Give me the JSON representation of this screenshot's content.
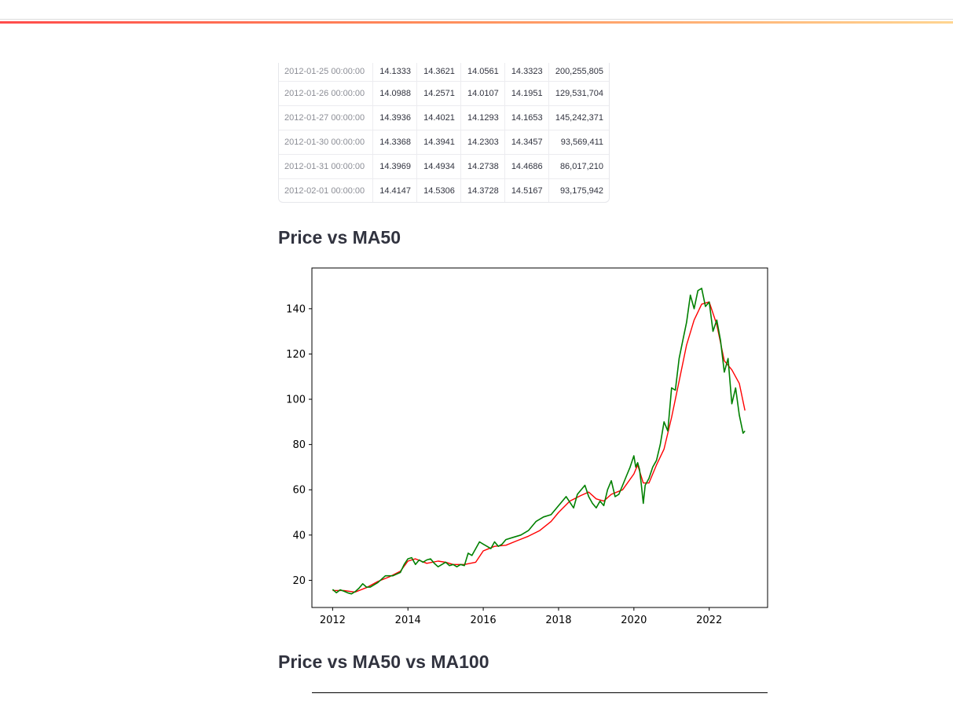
{
  "table": {
    "rows": [
      {
        "date": "2012-01-25 00:00:00",
        "open": "14.1333",
        "high": "14.3621",
        "low": "14.0561",
        "close": "14.3323",
        "volume": "200,255,805"
      },
      {
        "date": "2012-01-26 00:00:00",
        "open": "14.0988",
        "high": "14.2571",
        "low": "14.0107",
        "close": "14.1951",
        "volume": "129,531,704"
      },
      {
        "date": "2012-01-27 00:00:00",
        "open": "14.3936",
        "high": "14.4021",
        "low": "14.1293",
        "close": "14.1653",
        "volume": "145,242,371"
      },
      {
        "date": "2012-01-30 00:00:00",
        "open": "14.3368",
        "high": "14.3941",
        "low": "14.2303",
        "close": "14.3457",
        "volume": "93,569,411"
      },
      {
        "date": "2012-01-31 00:00:00",
        "open": "14.3969",
        "high": "14.4934",
        "low": "14.2738",
        "close": "14.4686",
        "volume": "86,017,210"
      },
      {
        "date": "2012-02-01 00:00:00",
        "open": "14.4147",
        "high": "14.5306",
        "low": "14.3728",
        "close": "14.5167",
        "volume": "93,175,942"
      }
    ]
  },
  "sections": {
    "ma50_title": "Price vs MA50",
    "ma100_title": "Price vs MA50 vs MA100"
  },
  "chart_data": {
    "type": "line",
    "title": "",
    "xlabel": "",
    "ylabel": "",
    "xlim": [
      2011.45,
      2023.55
    ],
    "ylim": [
      8,
      158
    ],
    "x_ticks": [
      2012,
      2014,
      2016,
      2018,
      2020,
      2022
    ],
    "y_ticks": [
      20,
      40,
      60,
      80,
      100,
      120,
      140
    ],
    "grid": false,
    "series": [
      {
        "color": "#ff0000",
        "x": [
          2012.0,
          2012.3,
          2012.6,
          2012.9,
          2013.2,
          2013.5,
          2013.8,
          2014.0,
          2014.2,
          2014.5,
          2014.8,
          2015.0,
          2015.2,
          2015.5,
          2015.8,
          2016.0,
          2016.3,
          2016.6,
          2016.9,
          2017.2,
          2017.5,
          2017.8,
          2018.0,
          2018.3,
          2018.6,
          2018.8,
          2019.0,
          2019.2,
          2019.4,
          2019.7,
          2020.0,
          2020.1,
          2020.25,
          2020.4,
          2020.6,
          2020.8,
          2021.0,
          2021.2,
          2021.4,
          2021.6,
          2021.8,
          2022.0,
          2022.2,
          2022.4,
          2022.6,
          2022.8,
          2022.95
        ],
        "y": [
          15.5,
          15.5,
          14.8,
          16.8,
          19.5,
          21.5,
          24,
          28.5,
          29.5,
          27.5,
          28.5,
          28,
          27,
          27,
          28,
          33,
          35,
          35.5,
          37.5,
          39.5,
          42,
          46,
          50,
          55,
          57.5,
          59,
          56,
          55,
          58,
          60,
          67,
          71,
          63,
          63,
          71,
          78,
          92,
          108,
          124,
          135,
          142,
          143,
          133,
          117,
          113,
          107,
          95
        ]
      },
      {
        "color": "#008000",
        "x": [
          2012.0,
          2012.1,
          2012.2,
          2012.3,
          2012.4,
          2012.5,
          2012.6,
          2012.7,
          2012.8,
          2012.9,
          2013.0,
          2013.2,
          2013.4,
          2013.6,
          2013.8,
          2013.9,
          2014.0,
          2014.1,
          2014.2,
          2014.3,
          2014.4,
          2014.5,
          2014.6,
          2014.7,
          2014.8,
          2014.9,
          2015.0,
          2015.1,
          2015.2,
          2015.3,
          2015.4,
          2015.5,
          2015.6,
          2015.7,
          2015.8,
          2015.9,
          2016.0,
          2016.1,
          2016.2,
          2016.3,
          2016.4,
          2016.5,
          2016.6,
          2016.8,
          2017.0,
          2017.2,
          2017.4,
          2017.6,
          2017.8,
          2018.0,
          2018.2,
          2018.4,
          2018.5,
          2018.6,
          2018.7,
          2018.8,
          2018.9,
          2019.0,
          2019.1,
          2019.2,
          2019.3,
          2019.4,
          2019.5,
          2019.6,
          2019.7,
          2019.8,
          2019.9,
          2020.0,
          2020.05,
          2020.1,
          2020.15,
          2020.2,
          2020.25,
          2020.3,
          2020.4,
          2020.5,
          2020.6,
          2020.7,
          2020.8,
          2020.9,
          2021.0,
          2021.1,
          2021.2,
          2021.3,
          2021.4,
          2021.5,
          2021.6,
          2021.7,
          2021.8,
          2021.9,
          2022.0,
          2022.1,
          2022.2,
          2022.3,
          2022.4,
          2022.5,
          2022.6,
          2022.7,
          2022.8,
          2022.9,
          2022.95
        ],
        "y": [
          16,
          14.5,
          15.8,
          15.2,
          14.5,
          14,
          15,
          16.5,
          18.5,
          17,
          17,
          19,
          22,
          22,
          23.5,
          27,
          29.5,
          30,
          27,
          29,
          28,
          29,
          29.5,
          27.5,
          26,
          27,
          28,
          26.5,
          27,
          26,
          27,
          26.5,
          32,
          31,
          34,
          37,
          36,
          35,
          34,
          37,
          35,
          36,
          38,
          39,
          40,
          42,
          46,
          48,
          49,
          53,
          57,
          52,
          58,
          60,
          62,
          57,
          54,
          52,
          55,
          53,
          60,
          64,
          57,
          58,
          62,
          66,
          70,
          75,
          70,
          72,
          69,
          62,
          54,
          62,
          65,
          70,
          73,
          80,
          90,
          86,
          105,
          104,
          118,
          126,
          134,
          146,
          140,
          148,
          149,
          141,
          143,
          130,
          135,
          126,
          112,
          118,
          98,
          105,
          93,
          85,
          86
        ]
      }
    ]
  }
}
